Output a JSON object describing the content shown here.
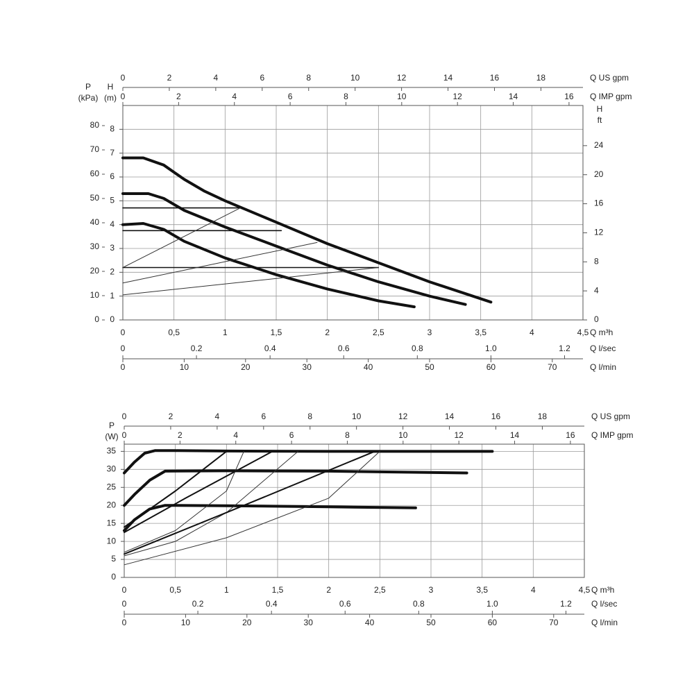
{
  "chart_data": [
    {
      "type": "line",
      "x_label": "Q m³h",
      "xlim": [
        0,
        4.5
      ],
      "xticks": [
        0,
        {
          "value": 0.5,
          "label": "0,5"
        },
        1,
        {
          "value": 1.5,
          "label": "1,5"
        },
        2,
        {
          "value": 2.5,
          "label": "2,5"
        },
        3,
        {
          "value": 3.5,
          "label": "3,5"
        },
        4,
        {
          "value": 4.5,
          "label": "4,5"
        }
      ],
      "y_label": "H",
      "y_unit": "(m)",
      "ylim": [
        0,
        9
      ],
      "yticks": [
        0,
        1,
        2,
        3,
        4,
        5,
        6,
        7,
        8
      ],
      "grid": true,
      "extra_axes": [
        {
          "position": "top-outer",
          "label": "Q US gpm",
          "lim": [
            0,
            19.81
          ],
          "ticks": [
            0,
            2,
            4,
            6,
            8,
            10,
            12,
            14,
            16,
            18
          ]
        },
        {
          "position": "top",
          "label": "Q IMP gpm",
          "lim": [
            0,
            16.5
          ],
          "ticks": [
            0,
            2,
            4,
            6,
            8,
            10,
            12,
            14,
            16
          ]
        },
        {
          "position": "bottom-middle",
          "label": "Q l/sec",
          "lim": [
            0,
            1.25
          ],
          "ticks": [
            0,
            0.2,
            0.4,
            0.6,
            0.8,
            {
              "value": 1,
              "label": "1.0"
            },
            1.2
          ]
        },
        {
          "position": "bottom-outer",
          "label": "Q l/min",
          "lim": [
            0,
            75
          ],
          "ticks": [
            0,
            10,
            20,
            30,
            40,
            50,
            60,
            70
          ]
        },
        {
          "position": "left-outer",
          "label": "P",
          "unit": "(kPa)",
          "lim": [
            0,
            88.29
          ],
          "ticks": [
            0,
            10,
            20,
            30,
            40,
            50,
            60,
            70,
            80
          ]
        },
        {
          "position": "right",
          "label": "H",
          "unit": "ft",
          "lim": [
            0,
            29.53
          ],
          "ticks": [
            0,
            4,
            8,
            12,
            16,
            20,
            24
          ]
        }
      ],
      "series": [
        {
          "color": "#111111",
          "width": 4,
          "x": [
            0,
            0.2,
            0.4,
            0.6,
            0.8,
            1.0,
            1.5,
            2.0,
            2.5,
            3.0,
            3.6
          ],
          "values": [
            6.8,
            6.8,
            6.5,
            5.9,
            5.4,
            5.0,
            4.1,
            3.2,
            2.4,
            1.6,
            0.75
          ]
        },
        {
          "color": "#111111",
          "width": 4,
          "x": [
            0,
            0.25,
            0.4,
            0.6,
            1.0,
            1.5,
            2.0,
            2.5,
            3.0,
            3.35
          ],
          "values": [
            5.3,
            5.3,
            5.1,
            4.6,
            3.9,
            3.1,
            2.3,
            1.6,
            1.0,
            0.65
          ]
        },
        {
          "color": "#111111",
          "width": 4,
          "x": [
            0,
            0.2,
            0.4,
            0.6,
            1.0,
            1.5,
            2.0,
            2.5,
            2.85
          ],
          "values": [
            4.0,
            4.05,
            3.8,
            3.3,
            2.6,
            1.9,
            1.3,
            0.8,
            0.55
          ]
        },
        {
          "color": "#111111",
          "width": 1.6,
          "x": [
            0,
            1.15
          ],
          "values": [
            4.7,
            4.7
          ]
        },
        {
          "color": "#111111",
          "width": 1.6,
          "x": [
            0,
            1.55
          ],
          "values": [
            3.75,
            3.75
          ]
        },
        {
          "color": "#111111",
          "width": 1.6,
          "x": [
            0,
            2.5
          ],
          "values": [
            2.2,
            2.2
          ]
        },
        {
          "color": "#333333",
          "width": 1,
          "x": [
            0,
            1.15
          ],
          "values": [
            2.2,
            4.7
          ]
        },
        {
          "color": "#333333",
          "width": 1,
          "x": [
            0,
            1.9
          ],
          "values": [
            1.55,
            3.25
          ]
        },
        {
          "color": "#333333",
          "width": 1,
          "x": [
            0,
            2.5
          ],
          "values": [
            1.05,
            2.2
          ]
        }
      ]
    },
    {
      "type": "line",
      "x_label": "Q m³h",
      "xlim": [
        0,
        4.5
      ],
      "xticks": [
        0,
        {
          "value": 0.5,
          "label": "0,5"
        },
        1,
        {
          "value": 1.5,
          "label": "1,5"
        },
        2,
        {
          "value": 2.5,
          "label": "2,5"
        },
        3,
        {
          "value": 3.5,
          "label": "3,5"
        },
        4,
        {
          "value": 4.5,
          "label": "4,5"
        }
      ],
      "y_label": "P",
      "y_unit": "(W)",
      "ylim": [
        0,
        37
      ],
      "yticks": [
        0,
        5,
        10,
        15,
        20,
        25,
        30,
        35
      ],
      "grid": true,
      "extra_axes": [
        {
          "position": "top-outer",
          "label": "Q US gpm",
          "lim": [
            0,
            19.81
          ],
          "ticks": [
            0,
            2,
            4,
            6,
            8,
            10,
            12,
            14,
            16,
            18
          ]
        },
        {
          "position": "top",
          "label": "Q IMP gpm",
          "lim": [
            0,
            16.5
          ],
          "ticks": [
            0,
            2,
            4,
            6,
            8,
            10,
            12,
            14,
            16
          ]
        },
        {
          "position": "bottom-middle",
          "label": "Q l/sec",
          "lim": [
            0,
            1.25
          ],
          "ticks": [
            0,
            0.2,
            0.4,
            0.6,
            0.8,
            {
              "value": 1,
              "label": "1.0"
            },
            1.2
          ]
        },
        {
          "position": "bottom-outer",
          "label": "Q l/min",
          "lim": [
            0,
            75
          ],
          "ticks": [
            0,
            10,
            20,
            30,
            40,
            50,
            60,
            70
          ]
        }
      ],
      "series": [
        {
          "color": "#111111",
          "width": 4,
          "x": [
            0,
            0.1,
            0.2,
            0.3,
            0.5,
            1,
            2,
            3.6
          ],
          "values": [
            29,
            32,
            34.5,
            35.2,
            35.2,
            35.1,
            35,
            35
          ]
        },
        {
          "color": "#111111",
          "width": 4,
          "x": [
            0,
            0.1,
            0.25,
            0.4,
            1,
            2,
            3.35
          ],
          "values": [
            20,
            23,
            27,
            29.5,
            29.6,
            29.5,
            29
          ]
        },
        {
          "color": "#111111",
          "width": 4,
          "x": [
            0,
            0.1,
            0.25,
            0.4,
            1,
            2,
            2.85
          ],
          "values": [
            13,
            16,
            19,
            20,
            19.9,
            19.6,
            19.3
          ]
        },
        {
          "color": "#111111",
          "width": 2,
          "x": [
            0,
            0.5,
            1.0
          ],
          "values": [
            14,
            24,
            35
          ]
        },
        {
          "color": "#333333",
          "width": 1,
          "x": [
            0,
            0.5,
            1.0,
            1.17
          ],
          "values": [
            7,
            13,
            24,
            35
          ]
        },
        {
          "color": "#111111",
          "width": 2,
          "x": [
            0,
            0.6,
            1.45
          ],
          "values": [
            12.5,
            22,
            35
          ]
        },
        {
          "color": "#333333",
          "width": 1,
          "x": [
            0,
            0.5,
            1.0,
            1.7
          ],
          "values": [
            6,
            10,
            18,
            35
          ]
        },
        {
          "color": "#111111",
          "width": 2,
          "x": [
            0,
            1.0,
            2.45
          ],
          "values": [
            6.5,
            18,
            35
          ]
        },
        {
          "color": "#333333",
          "width": 1,
          "x": [
            0,
            1,
            2,
            2.5
          ],
          "values": [
            3.5,
            11,
            22,
            35
          ]
        }
      ]
    }
  ]
}
